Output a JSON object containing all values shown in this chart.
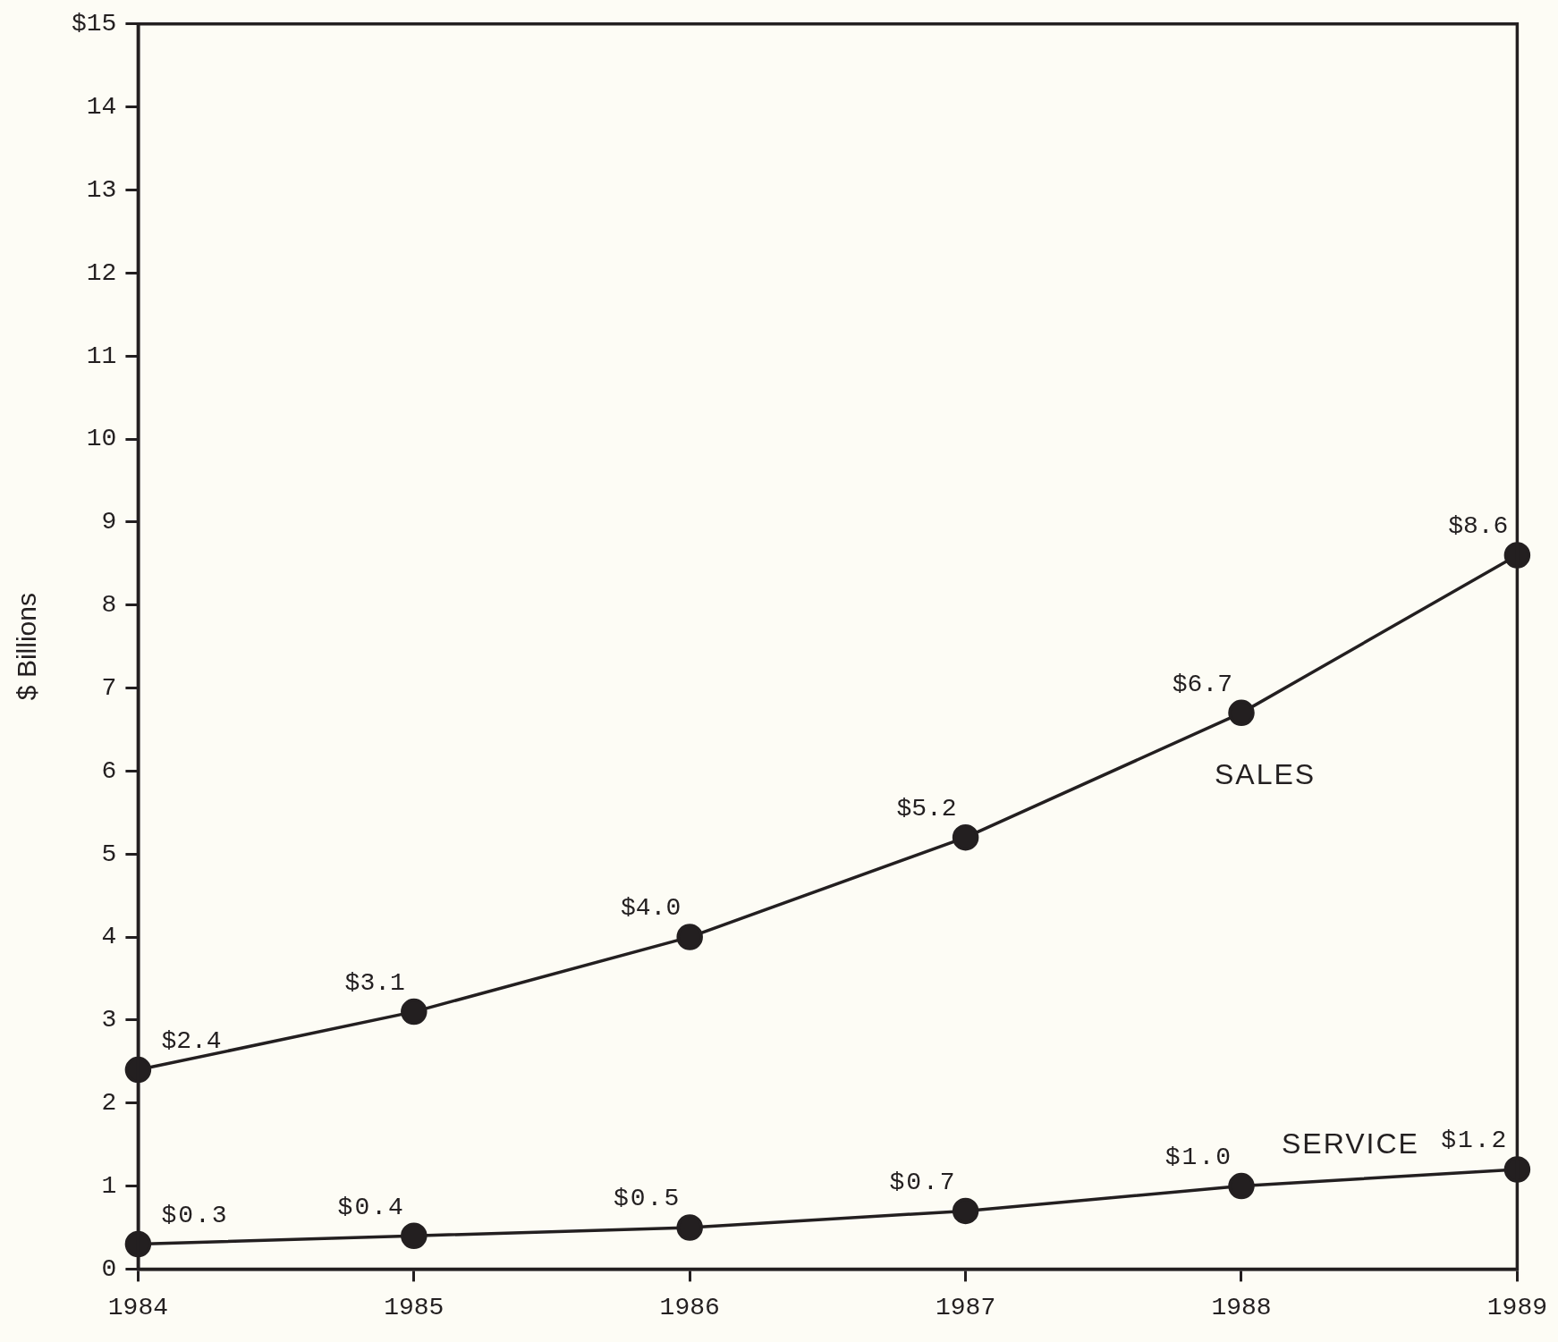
{
  "chart_data": {
    "type": "line",
    "ylabel": "$ Billions",
    "x": [
      1984,
      1985,
      1986,
      1987,
      1988,
      1989
    ],
    "series": [
      {
        "name": "SALES",
        "color": "#231f20",
        "values": [
          2.4,
          3.1,
          4.0,
          5.2,
          6.7,
          8.6
        ],
        "value_labels": [
          "$2.4",
          "$3.1",
          "$4.0",
          "$5.2",
          "$6.7",
          "$8.6"
        ]
      },
      {
        "name": "SERVICE",
        "color": "#231f20",
        "values": [
          0.3,
          0.4,
          0.5,
          0.7,
          1.0,
          1.2
        ],
        "value_labels": [
          "$0.3",
          "$0.4",
          "$0.5",
          "$0.7",
          "$1.0",
          "$1.2"
        ]
      }
    ],
    "xlim": [
      1984,
      1989
    ],
    "xticks": [
      1984,
      1985,
      1986,
      1987,
      1988,
      1989
    ],
    "ylim": [
      0,
      15
    ],
    "yticks": [
      0,
      1,
      2,
      3,
      4,
      5,
      6,
      7,
      8,
      9,
      10,
      11,
      12,
      13,
      14,
      {
        "value": 15,
        "label": "$15"
      }
    ],
    "grid": false,
    "legend": false,
    "marker": "circle",
    "line_style": "solid"
  }
}
